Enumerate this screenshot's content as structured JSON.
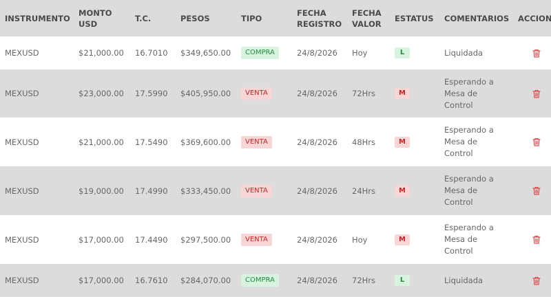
{
  "colors": {
    "compra_bg": "#d8f3e0",
    "compra_fg": "#1f8f3f",
    "venta_bg": "#f8d6d6",
    "venta_fg": "#c42626",
    "trash": "#e05252"
  },
  "headers": {
    "instrumento": "INSTRUMENTO",
    "monto": "MONTO\nUSD",
    "tc": "T.C.",
    "pesos": "PESOS",
    "tipo": "TIPO",
    "fecha_registro": "FECHA\nREGISTRO",
    "fecha_valor": "FECHA\nVALOR",
    "estatus": "ESTATUS",
    "comentarios": "COMENTARIOS",
    "acciones": "ACCIONES"
  },
  "rows": [
    {
      "instrumento": "MEXUSD",
      "monto": "$21,000.00",
      "tc": "16.7010",
      "pesos": "$349,650.00",
      "tipo": "COMPRA",
      "fecha_registro": "24/8/2026",
      "fecha_valor": "Hoy",
      "estatus": "L",
      "comentarios": "Liquidada",
      "accion_icon": "trash-icon"
    },
    {
      "instrumento": "MEXUSD",
      "monto": "$23,000.00",
      "tc": "17.5990",
      "pesos": "$405,950.00",
      "tipo": "VENTA",
      "fecha_registro": "24/8/2026",
      "fecha_valor": "72Hrs",
      "estatus": "M",
      "comentarios": "Esperando a Mesa de Control",
      "accion_icon": "trash-icon"
    },
    {
      "instrumento": "MEXUSD",
      "monto": "$21,000.00",
      "tc": "17.5490",
      "pesos": "$369,600.00",
      "tipo": "VENTA",
      "fecha_registro": "24/8/2026",
      "fecha_valor": "48Hrs",
      "estatus": "M",
      "comentarios": "Esperando a Mesa de Control",
      "accion_icon": "trash-icon"
    },
    {
      "instrumento": "MEXUSD",
      "monto": "$19,000.00",
      "tc": "17.4990",
      "pesos": "$333,450.00",
      "tipo": "VENTA",
      "fecha_registro": "24/8/2026",
      "fecha_valor": "24Hrs",
      "estatus": "M",
      "comentarios": "Esperando a Mesa de Control",
      "accion_icon": "trash-icon"
    },
    {
      "instrumento": "MEXUSD",
      "monto": "$17,000.00",
      "tc": "17.4490",
      "pesos": "$297,500.00",
      "tipo": "VENTA",
      "fecha_registro": "24/8/2026",
      "fecha_valor": "Hoy",
      "estatus": "M",
      "comentarios": "Esperando a Mesa de Control",
      "accion_icon": "trash-icon"
    },
    {
      "instrumento": "MEXUSD",
      "monto": "$17,000.00",
      "tc": "16.7610",
      "pesos": "$284,070.00",
      "tipo": "COMPRA",
      "fecha_registro": "24/8/2026",
      "fecha_valor": "72Hrs",
      "estatus": "L",
      "comentarios": "Liquidada",
      "accion_icon": "trash-icon"
    }
  ]
}
